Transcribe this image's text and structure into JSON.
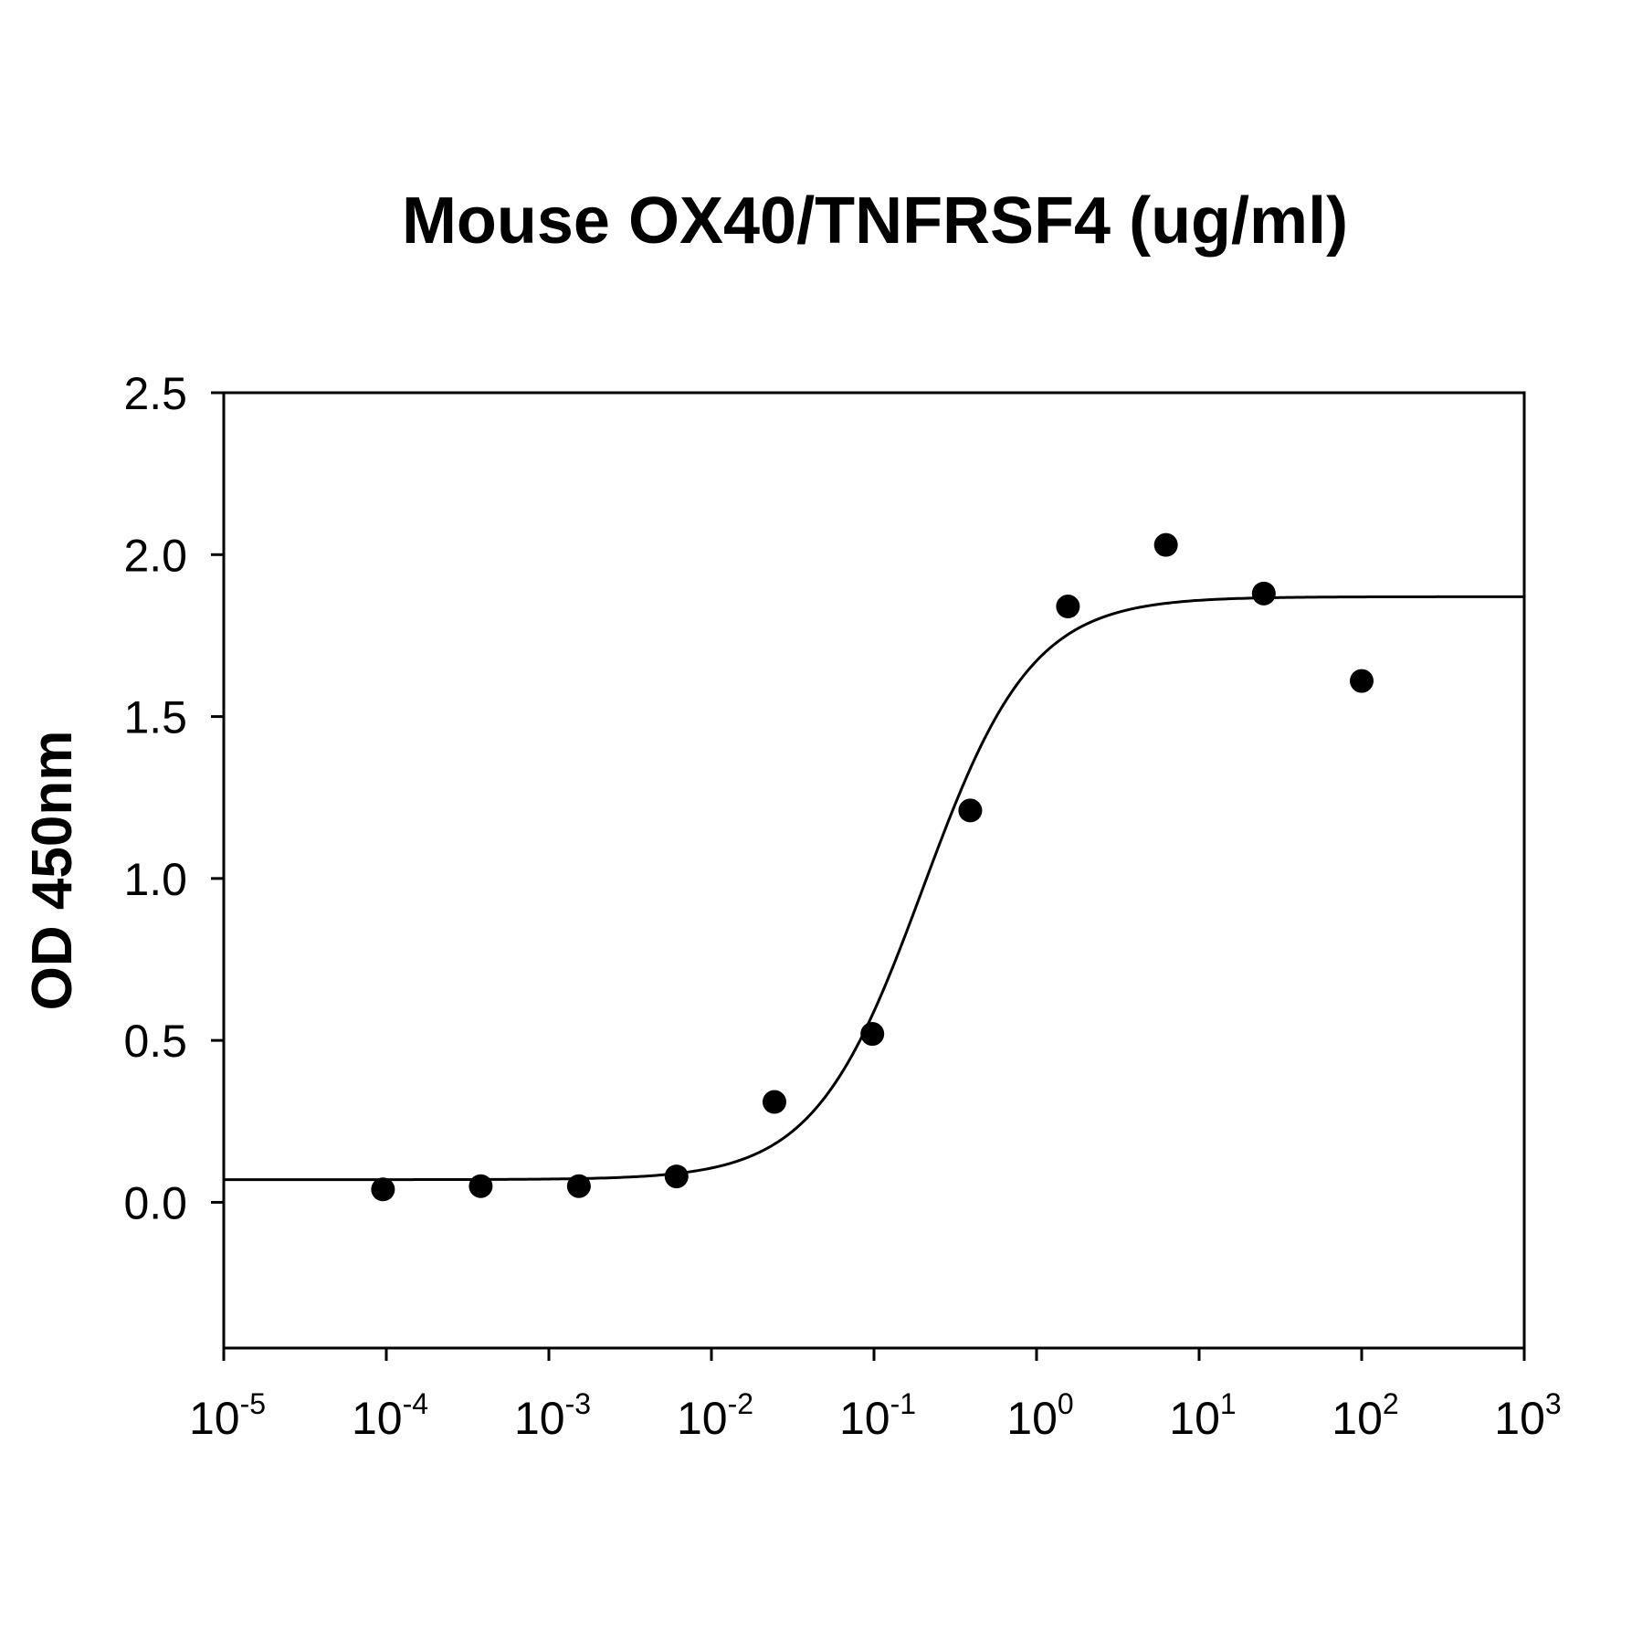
{
  "chart_data": {
    "type": "scatter",
    "title": "Mouse OX40/TNFRSF4 (ug/ml)",
    "xlabel": "",
    "ylabel": "OD 450nm",
    "x_scale": "log10",
    "xlim": [
      1e-05,
      1000
    ],
    "ylim": [
      -0.45,
      2.5
    ],
    "y_ticks": [
      "2.5",
      "2.0",
      "1.5",
      "1.0",
      "0.5",
      "0.0"
    ],
    "y_tick_values": [
      2.5,
      2.0,
      1.5,
      1.0,
      0.5,
      0.0
    ],
    "x_tick_values": [
      1e-05,
      0.0001,
      0.001,
      0.01,
      0.1,
      1,
      10,
      100,
      1000
    ],
    "x_ticks": [
      {
        "base": "10",
        "exp": "-5"
      },
      {
        "base": "10",
        "exp": "-4"
      },
      {
        "base": "10",
        "exp": "-3"
      },
      {
        "base": "10",
        "exp": "-2"
      },
      {
        "base": "10",
        "exp": "-1"
      },
      {
        "base": "10",
        "exp": "0"
      },
      {
        "base": "10",
        "exp": "1"
      },
      {
        "base": "10",
        "exp": "2"
      },
      {
        "base": "10",
        "exp": "3"
      }
    ],
    "grid": false,
    "series": [
      {
        "type": "scatter",
        "color": "#000000",
        "points": [
          {
            "x": 9.54e-05,
            "y": 0.04
          },
          {
            "x": 0.000381,
            "y": 0.05
          },
          {
            "x": 0.00153,
            "y": 0.05
          },
          {
            "x": 0.0061,
            "y": 0.08
          },
          {
            "x": 0.0244,
            "y": 0.31
          },
          {
            "x": 0.0977,
            "y": 0.52
          },
          {
            "x": 0.391,
            "y": 1.21
          },
          {
            "x": 1.56,
            "y": 1.84
          },
          {
            "x": 6.25,
            "y": 2.03
          },
          {
            "x": 25,
            "y": 1.88
          },
          {
            "x": 100,
            "y": 1.61
          }
        ]
      },
      {
        "type": "line",
        "color": "#000000",
        "fit": "four-parameter-logistic",
        "bottom": 0.07,
        "top": 1.87,
        "ec50": 0.2,
        "hill": 1.3
      }
    ]
  }
}
